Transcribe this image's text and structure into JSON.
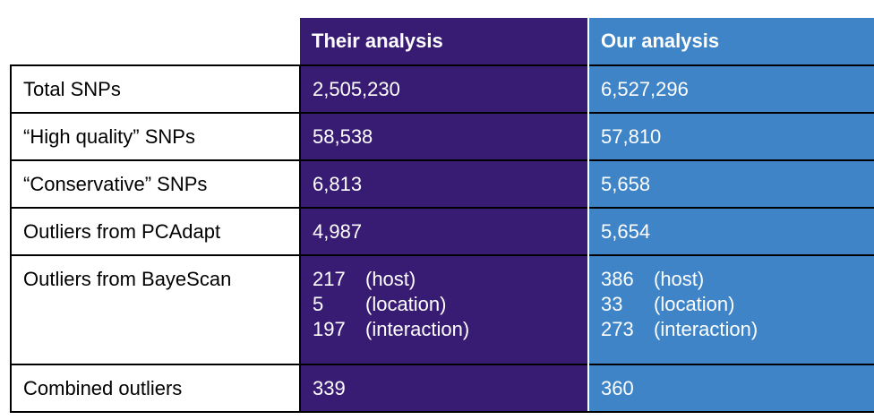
{
  "headers": {
    "their": "Their analysis",
    "ours": "Our analysis"
  },
  "rows": [
    {
      "label": "Total SNPs",
      "their": "2,505,230",
      "ours": "6,527,296"
    },
    {
      "label": "“High quality” SNPs",
      "their": "58,538",
      "ours": "57,810"
    },
    {
      "label": "“Conservative” SNPs",
      "their": "6,813",
      "ours": "5,658"
    },
    {
      "label": "Outliers from PCAdapt",
      "their": "4,987",
      "ours": "5,654"
    },
    {
      "label": "Outliers from BayeScan",
      "their": [
        {
          "value": "217",
          "category": "(host)"
        },
        {
          "value": "5",
          "category": "(location)"
        },
        {
          "value": "197",
          "category": "(interaction)"
        }
      ],
      "ours": [
        {
          "value": "386",
          "category": "(host)"
        },
        {
          "value": "33",
          "category": "(location)"
        },
        {
          "value": "273",
          "category": "(interaction)"
        }
      ]
    },
    {
      "label": "Combined outliers",
      "their": "339",
      "ours": "360"
    }
  ],
  "colors": {
    "their_bg": "#381c73",
    "ours_bg": "#3e84c7",
    "text_light": "#ffffff",
    "border": "#000000"
  }
}
